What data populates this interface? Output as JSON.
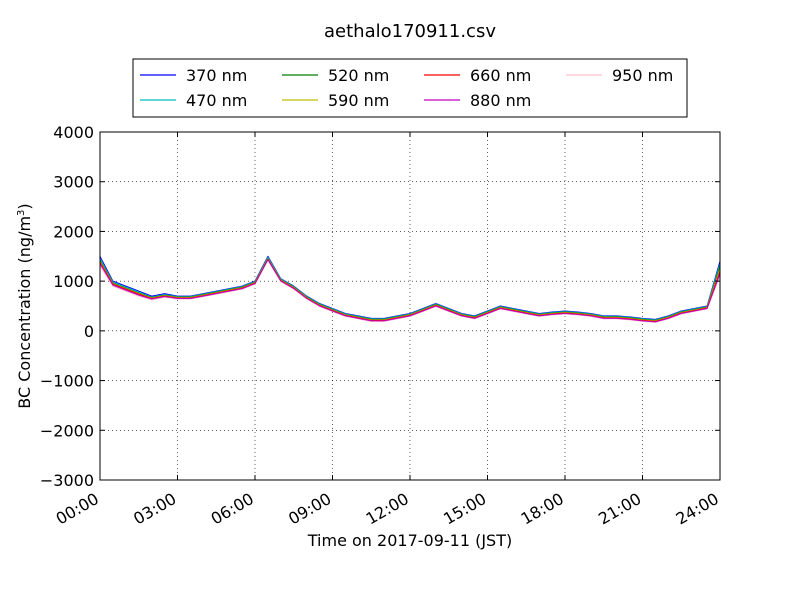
{
  "chart_data": {
    "type": "line",
    "title": "aethalo170911.csv",
    "xlabel": "Time on 2017-09-11 (JST)",
    "ylabel_main": "BC Concentration (ng/m",
    "ylabel_sup": "3",
    "ylabel_close": ")",
    "xlim_hours": [
      0,
      24
    ],
    "ylim": [
      -3000,
      4000
    ],
    "x_ticks": [
      {
        "hour": 0,
        "label": "00:00"
      },
      {
        "hour": 3,
        "label": "03:00"
      },
      {
        "hour": 6,
        "label": "06:00"
      },
      {
        "hour": 9,
        "label": "09:00"
      },
      {
        "hour": 12,
        "label": "12:00"
      },
      {
        "hour": 15,
        "label": "15:00"
      },
      {
        "hour": 18,
        "label": "18:00"
      },
      {
        "hour": 21,
        "label": "21:00"
      },
      {
        "hour": 24,
        "label": "24:00"
      }
    ],
    "y_ticks": [
      {
        "value": 4000,
        "label": "4000"
      },
      {
        "value": 3000,
        "label": "3000"
      },
      {
        "value": 2000,
        "label": "2000"
      },
      {
        "value": 1000,
        "label": "1000"
      },
      {
        "value": 0,
        "label": "0"
      },
      {
        "value": -1000,
        "label": "−1000"
      },
      {
        "value": -2000,
        "label": "−2000"
      },
      {
        "value": -3000,
        "label": "−3000"
      }
    ],
    "grid": true,
    "legend_position": "top-center",
    "x_hours": [
      0,
      0.5,
      1,
      1.5,
      2,
      2.5,
      3,
      3.5,
      4,
      4.5,
      5,
      5.5,
      6,
      6.5,
      7,
      7.5,
      8,
      8.5,
      9,
      9.5,
      10,
      10.5,
      11,
      11.5,
      12,
      12.5,
      13,
      13.5,
      14,
      14.5,
      15,
      15.5,
      16,
      16.5,
      17,
      17.5,
      18,
      18.5,
      19,
      19.5,
      20,
      20.5,
      21,
      21.5,
      22,
      22.5,
      23,
      23.5,
      24
    ],
    "series": [
      {
        "name": "370 nm",
        "color": "#0000ff",
        "values": [
          1500,
          1000,
          900,
          800,
          700,
          750,
          700,
          700,
          750,
          800,
          850,
          900,
          1000,
          1500,
          1050,
          900,
          700,
          550,
          450,
          350,
          300,
          250,
          250,
          300,
          350,
          450,
          550,
          450,
          350,
          300,
          400,
          500,
          450,
          400,
          350,
          380,
          400,
          380,
          350,
          300,
          300,
          280,
          250,
          230,
          300,
          400,
          450,
          500,
          1400
        ]
      },
      {
        "name": "470 nm",
        "color": "#00bfbf",
        "values": [
          1450,
          980,
          880,
          780,
          680,
          730,
          690,
          690,
          740,
          790,
          840,
          890,
          990,
          1480,
          1040,
          890,
          690,
          540,
          440,
          340,
          290,
          240,
          240,
          290,
          340,
          440,
          540,
          440,
          340,
          290,
          390,
          490,
          440,
          390,
          340,
          370,
          390,
          370,
          340,
          290,
          290,
          270,
          240,
          220,
          290,
          390,
          440,
          490,
          1350
        ]
      },
      {
        "name": "520 nm",
        "color": "#008000",
        "values": [
          1420,
          960,
          860,
          760,
          670,
          720,
          680,
          680,
          730,
          780,
          830,
          880,
          980,
          1460,
          1030,
          880,
          680,
          530,
          430,
          330,
          280,
          230,
          230,
          280,
          330,
          430,
          530,
          430,
          330,
          280,
          380,
          480,
          430,
          380,
          330,
          360,
          380,
          360,
          330,
          280,
          280,
          260,
          230,
          210,
          280,
          380,
          430,
          480,
          1300
        ]
      },
      {
        "name": "590 nm",
        "color": "#bfbf00",
        "values": [
          1400,
          950,
          850,
          750,
          660,
          710,
          670,
          670,
          720,
          770,
          820,
          870,
          970,
          1450,
          1020,
          870,
          670,
          520,
          420,
          320,
          270,
          220,
          220,
          270,
          320,
          420,
          520,
          420,
          320,
          270,
          370,
          470,
          420,
          370,
          320,
          350,
          370,
          350,
          320,
          270,
          270,
          250,
          220,
          200,
          270,
          370,
          420,
          470,
          1250
        ]
      },
      {
        "name": "660 nm",
        "color": "#ff0000",
        "values": [
          1380,
          940,
          840,
          740,
          650,
          700,
          660,
          660,
          710,
          760,
          810,
          860,
          960,
          1440,
          1010,
          860,
          660,
          510,
          410,
          310,
          260,
          210,
          210,
          260,
          310,
          410,
          510,
          410,
          310,
          260,
          360,
          460,
          410,
          360,
          310,
          340,
          360,
          340,
          310,
          260,
          260,
          240,
          210,
          190,
          260,
          360,
          410,
          460,
          1200
        ]
      },
      {
        "name": "880 nm",
        "color": "#bf00bf",
        "values": [
          1350,
          920,
          820,
          720,
          640,
          690,
          650,
          650,
          700,
          750,
          800,
          850,
          950,
          1430,
          1000,
          850,
          650,
          500,
          400,
          300,
          250,
          200,
          200,
          250,
          300,
          400,
          500,
          400,
          300,
          250,
          350,
          450,
          400,
          350,
          300,
          330,
          350,
          330,
          300,
          250,
          250,
          230,
          200,
          180,
          250,
          350,
          400,
          450,
          1150
        ]
      },
      {
        "name": "950 nm",
        "color": "#ffc0cb",
        "values": [
          1300,
          900,
          800,
          700,
          620,
          680,
          640,
          640,
          690,
          740,
          790,
          840,
          940,
          1420,
          990,
          840,
          640,
          490,
          390,
          290,
          240,
          190,
          190,
          240,
          290,
          390,
          490,
          390,
          290,
          240,
          340,
          440,
          390,
          340,
          290,
          320,
          340,
          320,
          290,
          240,
          240,
          220,
          190,
          170,
          240,
          340,
          390,
          440,
          1100
        ]
      }
    ]
  }
}
